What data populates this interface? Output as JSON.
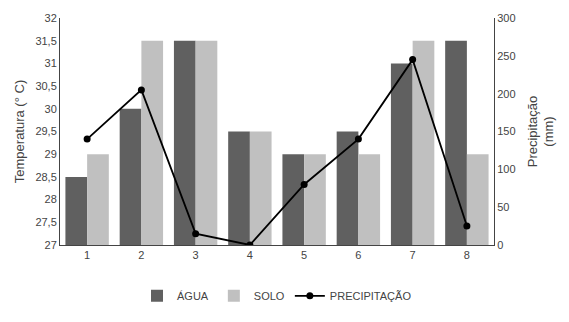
{
  "chart_data": {
    "type": "bar",
    "categories": [
      1,
      2,
      3,
      4,
      5,
      6,
      7,
      8
    ],
    "series": [
      {
        "name": "ÁGUA",
        "color": "#606060",
        "values": [
          28.5,
          30.0,
          31.5,
          29.5,
          29.0,
          29.5,
          31.0,
          31.5
        ]
      },
      {
        "name": "SOLO",
        "color": "#c0c0c0",
        "values": [
          29.0,
          31.5,
          31.5,
          29.5,
          29.0,
          29.0,
          31.5,
          29.0
        ]
      },
      {
        "name": "PRECIPITAÇÃO",
        "type": "line",
        "color": "#000000",
        "marker": "circle",
        "axis": "y2",
        "values": [
          140,
          205,
          15,
          0,
          80,
          140,
          245,
          25
        ]
      }
    ],
    "ylabel": "Temperatura (° C)",
    "y2label": "Precipitação\n(mm)",
    "ylim": [
      27,
      32
    ],
    "yticks": [
      27,
      {
        "value": 27.5,
        "label": "27,5"
      },
      28,
      {
        "value": 28.5,
        "label": "28,5"
      },
      29,
      {
        "value": 29.5,
        "label": "29,5"
      },
      30,
      {
        "value": 30.5,
        "label": "30,5"
      },
      31,
      {
        "value": 31.5,
        "label": "31,5"
      },
      32
    ],
    "y2lim": [
      0,
      300
    ],
    "y2ticks": [
      0,
      50,
      100,
      150,
      200,
      250,
      300
    ],
    "grid": false,
    "legend": "bottom"
  }
}
